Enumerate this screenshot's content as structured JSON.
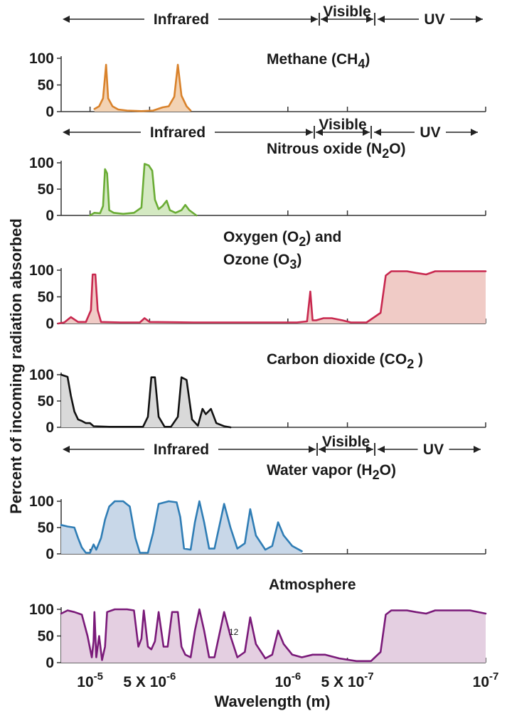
{
  "chart_data": {
    "type": "area",
    "ylabel": "Percent of incoming radiation absorbed",
    "xlabel": "Wavelength (m)",
    "x_scale": "log-reversed",
    "xlim": [
      1.4e-05,
      1e-07
    ],
    "x_ticks": [
      {
        "value": 1e-05,
        "label": "10",
        "exp": "-5"
      },
      {
        "value": 5e-06,
        "label": "5 X 10",
        "exp": "-6"
      },
      {
        "value": 1e-06,
        "label": "10",
        "exp": "-6"
      },
      {
        "value": 5e-07,
        "label": "5 X 10",
        "exp": "-7"
      },
      {
        "value": 1e-07,
        "label": "10",
        "exp": "-7"
      }
    ],
    "y_ticks": [
      "100",
      "50",
      "0"
    ],
    "ylim": [
      0,
      100
    ],
    "bands": {
      "infrared": "Infrared",
      "visible": "Visible",
      "uv": "UV"
    },
    "page_marker": "12",
    "panels": [
      {
        "name_parts": [
          "Methane (CH",
          "4",
          ")"
        ],
        "color": "#d9822b",
        "fill": "#f3d3b4",
        "points": [
          [
            9.5e-06,
            5
          ],
          [
            9e-06,
            10
          ],
          [
            8.6e-06,
            25
          ],
          [
            8.3e-06,
            88
          ],
          [
            8.1e-06,
            25
          ],
          [
            7.7e-06,
            10
          ],
          [
            7.2e-06,
            4
          ],
          [
            6.5e-06,
            2
          ],
          [
            5.5e-06,
            1
          ],
          [
            4.8e-06,
            2
          ],
          [
            4.3e-06,
            8
          ],
          [
            4e-06,
            10
          ],
          [
            3.75e-06,
            28
          ],
          [
            3.6e-06,
            88
          ],
          [
            3.45e-06,
            30
          ],
          [
            3.25e-06,
            10
          ],
          [
            3.1e-06,
            2
          ]
        ]
      },
      {
        "name_parts": [
          "Nitrous oxide (N",
          "2",
          "O)"
        ],
        "color": "#6aac35",
        "fill": "#d4e9c2",
        "points": [
          [
            1e-05,
            0
          ],
          [
            9.5e-06,
            5
          ],
          [
            8.9e-06,
            4
          ],
          [
            8.6e-06,
            18
          ],
          [
            8.4e-06,
            88
          ],
          [
            8.2e-06,
            80
          ],
          [
            8e-06,
            10
          ],
          [
            7.6e-06,
            5
          ],
          [
            6.8e-06,
            3
          ],
          [
            6e-06,
            5
          ],
          [
            5.5e-06,
            15
          ],
          [
            5.3e-06,
            98
          ],
          [
            5.05e-06,
            95
          ],
          [
            4.85e-06,
            85
          ],
          [
            4.7e-06,
            30
          ],
          [
            4.5e-06,
            12
          ],
          [
            4.3e-06,
            18
          ],
          [
            4.1e-06,
            28
          ],
          [
            3.95e-06,
            10
          ],
          [
            3.7e-06,
            5
          ],
          [
            3.45e-06,
            10
          ],
          [
            3.3e-06,
            20
          ],
          [
            3.15e-06,
            10
          ],
          [
            3e-06,
            4
          ],
          [
            2.9e-06,
            0
          ]
        ]
      },
      {
        "name_parts": [
          "Oxygen (O",
          "2",
          ")  and"
        ],
        "name2_parts": [
          "Ozone (O",
          "3",
          ")"
        ],
        "color": "#c8284f",
        "fill": "#f0cbc6",
        "points": [
          [
            1.45e-05,
            0
          ],
          [
            1.35e-05,
            2
          ],
          [
            1.25e-05,
            12
          ],
          [
            1.15e-05,
            3
          ],
          [
            1.05e-05,
            3
          ],
          [
            9.9e-06,
            25
          ],
          [
            9.7e-06,
            92
          ],
          [
            9.4e-06,
            92
          ],
          [
            9.15e-06,
            25
          ],
          [
            8.8e-06,
            3
          ],
          [
            7e-06,
            2
          ],
          [
            5.6e-06,
            2
          ],
          [
            5.3e-06,
            10
          ],
          [
            5e-06,
            3
          ],
          [
            3e-06,
            2
          ],
          [
            1.5e-06,
            2
          ],
          [
            9e-07,
            2
          ],
          [
            8e-07,
            4
          ],
          [
            7.7e-07,
            60
          ],
          [
            7.5e-07,
            6
          ],
          [
            7.2e-07,
            6
          ],
          [
            6.6e-07,
            10
          ],
          [
            6e-07,
            10
          ],
          [
            5.3e-07,
            6
          ],
          [
            4.8e-07,
            2
          ],
          [
            4e-07,
            2
          ],
          [
            3.4e-07,
            20
          ],
          [
            3.2e-07,
            90
          ],
          [
            3e-07,
            98
          ],
          [
            2.5e-07,
            98
          ],
          [
            2.25e-07,
            95
          ],
          [
            2e-07,
            92
          ],
          [
            1.8e-07,
            98
          ],
          [
            1.2e-07,
            98
          ],
          [
            1e-07,
            98
          ]
        ]
      },
      {
        "name_parts": [
          "Carbon dioxide (CO",
          "2",
          " )"
        ],
        "color": "#111111",
        "fill": "#d9d9d9",
        "points": [
          [
            1.4e-05,
            100
          ],
          [
            1.3e-05,
            96
          ],
          [
            1.25e-05,
            60
          ],
          [
            1.2e-05,
            30
          ],
          [
            1.15e-05,
            15
          ],
          [
            1.1e-05,
            12
          ],
          [
            1.05e-05,
            8
          ],
          [
            1e-05,
            8
          ],
          [
            9.6e-06,
            2
          ],
          [
            8e-06,
            1
          ],
          [
            6e-06,
            1
          ],
          [
            5.4e-06,
            1
          ],
          [
            5.1e-06,
            20
          ],
          [
            4.9e-06,
            95
          ],
          [
            4.7e-06,
            95
          ],
          [
            4.5e-06,
            20
          ],
          [
            4.2e-06,
            1
          ],
          [
            3.9e-06,
            1
          ],
          [
            3.6e-06,
            20
          ],
          [
            3.45e-06,
            95
          ],
          [
            3.25e-06,
            90
          ],
          [
            3.05e-06,
            15
          ],
          [
            2.85e-06,
            3
          ],
          [
            2.7e-06,
            35
          ],
          [
            2.6e-06,
            25
          ],
          [
            2.45e-06,
            35
          ],
          [
            2.3e-06,
            8
          ],
          [
            2.1e-06,
            2
          ],
          [
            1.95e-06,
            0
          ]
        ]
      },
      {
        "name_parts": [
          "Water vapor (H",
          "2",
          "O)"
        ],
        "color": "#2f7db5",
        "fill": "#c8d7e8",
        "points": [
          [
            1.4e-05,
            55
          ],
          [
            1.3e-05,
            52
          ],
          [
            1.2e-05,
            50
          ],
          [
            1.15e-05,
            30
          ],
          [
            1.1e-05,
            12
          ],
          [
            1.05e-05,
            2
          ],
          [
            1e-05,
            2
          ],
          [
            9.6e-06,
            18
          ],
          [
            9.3e-06,
            8
          ],
          [
            8.8e-06,
            30
          ],
          [
            8.4e-06,
            65
          ],
          [
            8e-06,
            90
          ],
          [
            7.5e-06,
            100
          ],
          [
            6.8e-06,
            100
          ],
          [
            6.3e-06,
            90
          ],
          [
            5.9e-06,
            30
          ],
          [
            5.6e-06,
            2
          ],
          [
            5.1e-06,
            2
          ],
          [
            4.8e-06,
            40
          ],
          [
            4.5e-06,
            95
          ],
          [
            4e-06,
            100
          ],
          [
            3.65e-06,
            98
          ],
          [
            3.5e-06,
            70
          ],
          [
            3.35e-06,
            10
          ],
          [
            3.1e-06,
            8
          ],
          [
            2.95e-06,
            60
          ],
          [
            2.8e-06,
            100
          ],
          [
            2.65e-06,
            60
          ],
          [
            2.5e-06,
            10
          ],
          [
            2.35e-06,
            10
          ],
          [
            2.2e-06,
            60
          ],
          [
            2.1e-06,
            95
          ],
          [
            1.95e-06,
            50
          ],
          [
            1.8e-06,
            10
          ],
          [
            1.65e-06,
            20
          ],
          [
            1.55e-06,
            85
          ],
          [
            1.45e-06,
            35
          ],
          [
            1.3e-06,
            8
          ],
          [
            1.2e-06,
            15
          ],
          [
            1.12e-06,
            60
          ],
          [
            1.05e-06,
            35
          ],
          [
            9.5e-07,
            15
          ],
          [
            8.5e-07,
            5
          ]
        ]
      },
      {
        "name_parts": [
          "Atmosphere"
        ],
        "color": "#7a1a79",
        "fill": "#e4cfe1",
        "points": [
          [
            1.4e-05,
            92
          ],
          [
            1.3e-05,
            98
          ],
          [
            1.2e-05,
            95
          ],
          [
            1.1e-05,
            90
          ],
          [
            1.03e-05,
            50
          ],
          [
            9.8e-06,
            10
          ],
          [
            9.6e-06,
            40
          ],
          [
            9.5e-06,
            95
          ],
          [
            9.3e-06,
            10
          ],
          [
            9e-06,
            50
          ],
          [
            8.7e-06,
            5
          ],
          [
            8.4e-06,
            30
          ],
          [
            8.2e-06,
            95
          ],
          [
            7.5e-06,
            100
          ],
          [
            6.5e-06,
            100
          ],
          [
            6e-06,
            98
          ],
          [
            5.7e-06,
            30
          ],
          [
            5.5e-06,
            45
          ],
          [
            5.35e-06,
            98
          ],
          [
            5.1e-06,
            30
          ],
          [
            4.9e-06,
            25
          ],
          [
            4.7e-06,
            40
          ],
          [
            4.5e-06,
            95
          ],
          [
            4.25e-06,
            30
          ],
          [
            4.05e-06,
            30
          ],
          [
            3.85e-06,
            95
          ],
          [
            3.6e-06,
            95
          ],
          [
            3.45e-06,
            30
          ],
          [
            3.3e-06,
            15
          ],
          [
            3.1e-06,
            10
          ],
          [
            2.95e-06,
            60
          ],
          [
            2.8e-06,
            100
          ],
          [
            2.65e-06,
            60
          ],
          [
            2.5e-06,
            10
          ],
          [
            2.35e-06,
            10
          ],
          [
            2.2e-06,
            60
          ],
          [
            2.1e-06,
            95
          ],
          [
            1.95e-06,
            50
          ],
          [
            1.8e-06,
            10
          ],
          [
            1.65e-06,
            20
          ],
          [
            1.55e-06,
            85
          ],
          [
            1.45e-06,
            35
          ],
          [
            1.3e-06,
            8
          ],
          [
            1.2e-06,
            15
          ],
          [
            1.12e-06,
            60
          ],
          [
            1.05e-06,
            35
          ],
          [
            9.5e-07,
            15
          ],
          [
            8.5e-07,
            10
          ],
          [
            7.5e-07,
            15
          ],
          [
            6.5e-07,
            15
          ],
          [
            5.5e-07,
            8
          ],
          [
            4.5e-07,
            3
          ],
          [
            3.8e-07,
            3
          ],
          [
            3.4e-07,
            20
          ],
          [
            3.2e-07,
            90
          ],
          [
            3e-07,
            98
          ],
          [
            2.5e-07,
            98
          ],
          [
            2.25e-07,
            95
          ],
          [
            2e-07,
            92
          ],
          [
            1.8e-07,
            98
          ],
          [
            1.2e-07,
            98
          ],
          [
            1e-07,
            92
          ]
        ]
      }
    ]
  }
}
